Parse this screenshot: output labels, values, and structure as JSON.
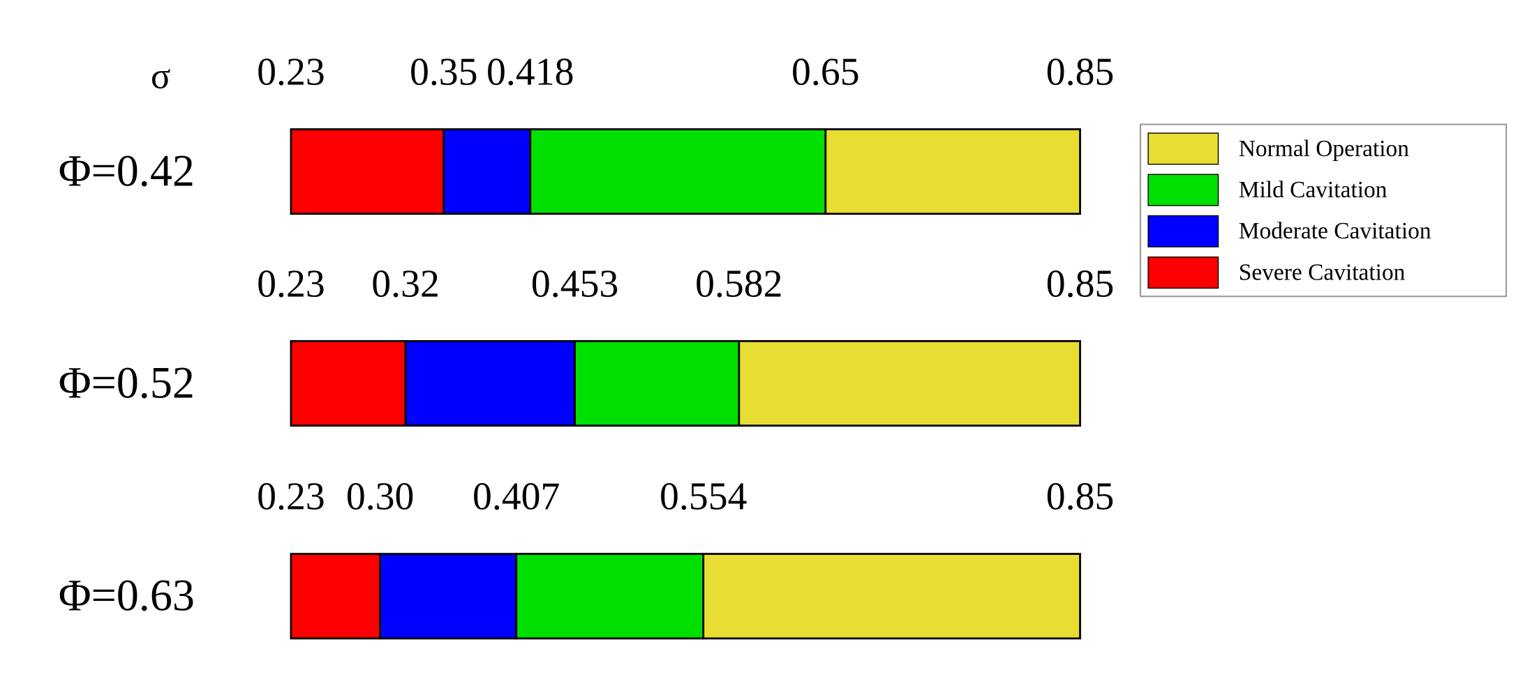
{
  "chart_data": {
    "type": "range-bar",
    "axis_label": "σ",
    "xlim": [
      0.23,
      0.85
    ],
    "series": [
      {
        "name": "Normal Operation",
        "color": "#e8de33"
      },
      {
        "name": "Mild Cavitation",
        "color": "#00e000"
      },
      {
        "name": "Moderate Cavitation",
        "color": "#0000ff"
      },
      {
        "name": "Severe Cavitation",
        "color": "#ff0000"
      }
    ],
    "rows": [
      {
        "label": "Φ=0.42",
        "boundaries": [
          0.23,
          0.35,
          0.418,
          0.65,
          0.85
        ]
      },
      {
        "label": "Φ=0.52",
        "boundaries": [
          0.23,
          0.32,
          0.453,
          0.582,
          0.85
        ]
      },
      {
        "label": "Φ=0.63",
        "boundaries": [
          0.23,
          {
            "value": 0.3,
            "label": "0.30"
          },
          0.407,
          0.554,
          0.85
        ]
      }
    ]
  }
}
